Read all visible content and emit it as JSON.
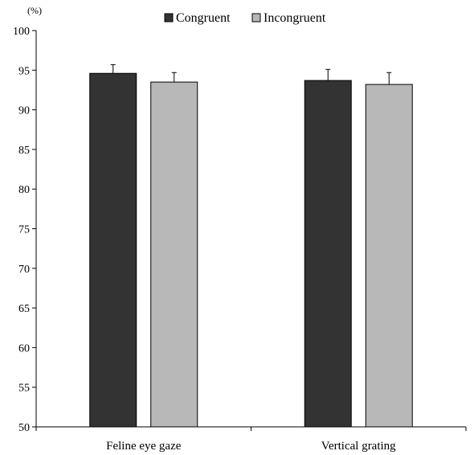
{
  "chart_data": {
    "type": "bar",
    "title": "",
    "xlabel": "",
    "ylabel": "",
    "y_unit_label": "(%)",
    "ylim": [
      50,
      100
    ],
    "yticks": [
      50,
      55,
      60,
      65,
      70,
      75,
      80,
      85,
      90,
      95,
      100
    ],
    "categories": [
      "Feline eye gaze",
      "Vertical grating"
    ],
    "series": [
      {
        "name": "Congruent",
        "color": "#333333",
        "values": [
          94.6,
          93.7
        ],
        "errors": [
          1.1,
          1.4
        ]
      },
      {
        "name": "Incongruent",
        "color": "#b8b8b8",
        "values": [
          93.5,
          93.2
        ],
        "errors": [
          1.2,
          1.5
        ]
      }
    ],
    "legend_position": "top",
    "grid": false
  }
}
